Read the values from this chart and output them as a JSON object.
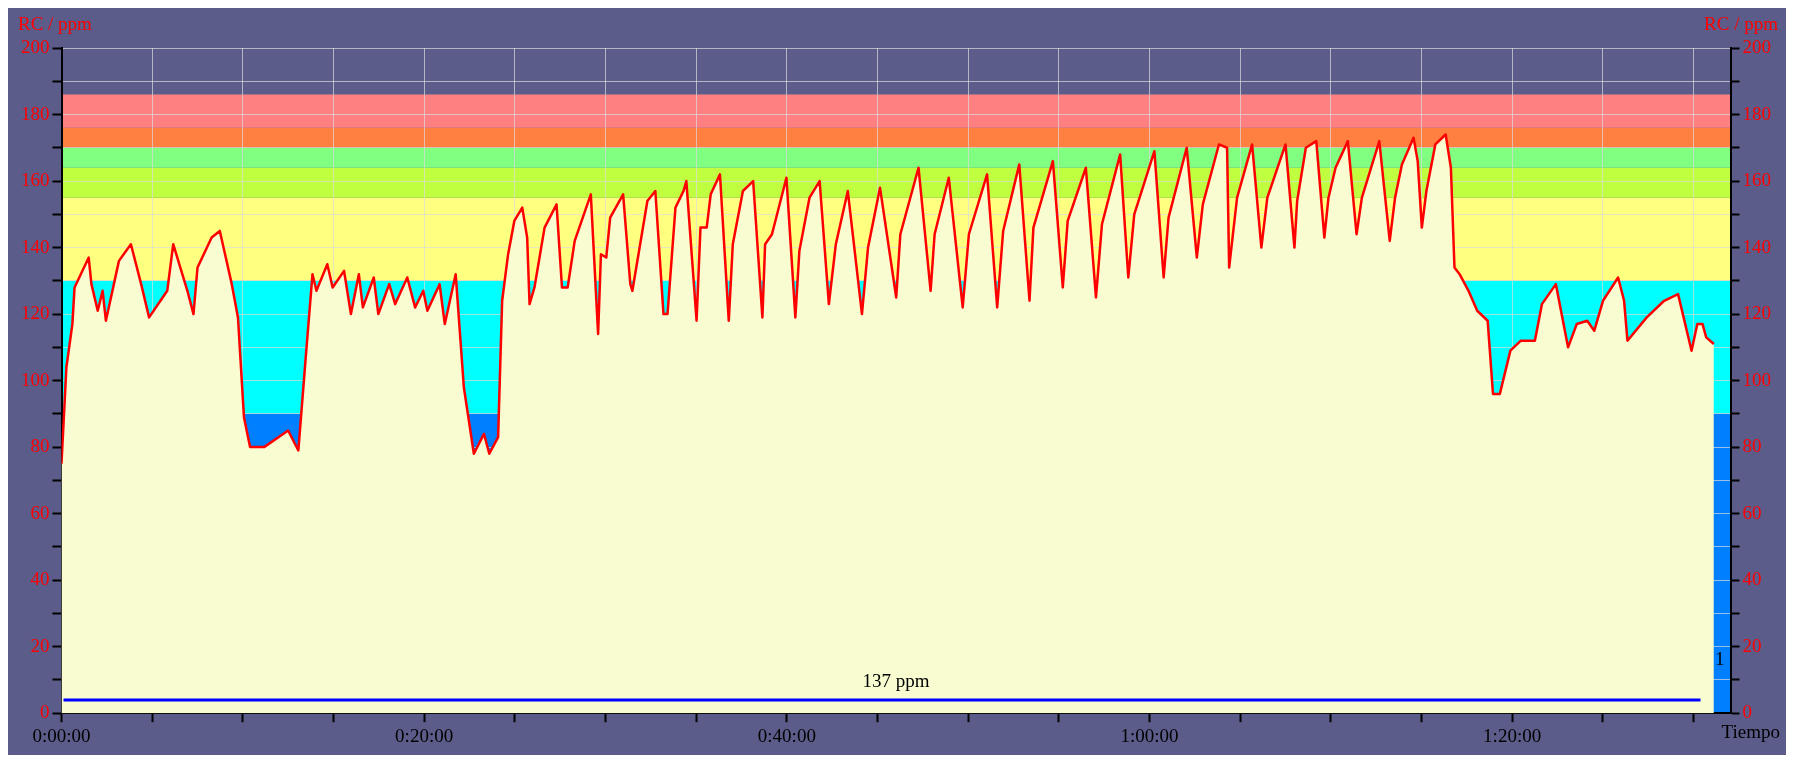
{
  "chart_data": {
    "type": "area",
    "xlabel": "Tiempo",
    "ylabel": "RC / ppm",
    "y2label": "RC / ppm",
    "x": [
      0,
      0.0045,
      0.01,
      0.012,
      0.025,
      0.0275,
      0.0333,
      0.0378,
      0.0408,
      0.0528,
      0.0638,
      0.0732,
      0.0805,
      0.0972,
      0.1027,
      0.1157,
      0.1213,
      0.125,
      0.138,
      0.1455,
      0.1565,
      0.1622,
      0.1677,
      0.1733,
      0.1862,
      0.2083,
      0.2177,
      0.224,
      0.2307,
      0.2343,
      0.2443,
      0.2492,
      0.2597,
      0.266,
      0.2733,
      0.277,
      0.287,
      0.2912,
      0.3012,
      0.3067,
      0.3178,
      0.325,
      0.3325,
      0.3363,
      0.3475,
      0.3523,
      0.3623,
      0.3698,
      0.379,
      0.3883,
      0.3932,
      0.4013,
      0.405,
      0.4105,
      0.4162,
      0.4235,
      0.428,
      0.4302,
      0.4347,
      0.444,
      0.455,
      0.46,
      0.4652,
      0.4717,
      0.4865,
      0.4932,
      0.4958,
      0.5007,
      0.5043,
      0.5162,
      0.5228,
      0.5247,
      0.5385,
      0.5458,
      0.5533,
      0.557,
      0.5643,
      0.5717,
      0.5743,
      0.5837,
      0.5873,
      0.593,
      0.5967,
      0.6052,
      0.6133,
      0.617,
      0.6263,
      0.6357,
      0.6442,
      0.6467,
      0.653,
      0.6663,
      0.6745,
      0.6782,
      0.6875,
      0.6968,
      0.7053,
      0.7117,
      0.7227,
      0.7357,
      0.7413,
      0.7523,
      0.7672,
      0.771,
      0.7877,
      0.7988,
      0.8025,
      0.8155,
      0.8283,
      0.834,
      0.8507,
      0.86,
      0.8655,
      0.8803,
      0.8897,
      0.8933,
      0.9112,
      0.9203,
      0.9248,
      0.9415,
      0.9508,
      0.9563,
      0.973,
      0.9805,
      0.986,
      1.0045,
      1.013,
      1.0175,
      1.0342,
      1.0435,
      1.049,
      1.0638,
      1.0713,
      1.0732,
      1.0805,
      1.0943,
      1.1028,
      1.1083,
      1.125,
      1.1332,
      1.1357,
      1.1437,
      1.1533,
      1.1607,
      1.1645,
      1.171,
      1.1823,
      1.1903,
      1.1952,
      1.2112,
      1.2208,
      1.2257,
      1.232,
      1.2427,
      1.2465,
      1.2503,
      1.2545,
      1.2627,
      1.2722,
      1.277,
      1.2803,
      1.285,
      1.2932,
      1.3012,
      1.3108,
      1.3157,
      1.322,
      1.3317,
      1.3413,
      1.3542,
      1.3607,
      1.3735,
      1.3847,
      1.3927,
      1.4023,
      1.4088,
      1.4168,
      1.4307,
      1.4362,
      1.4393,
      1.457,
      1.473,
      1.4858,
      1.4982,
      1.5035,
      1.5083,
      1.5117,
      1.5187
    ],
    "series": [
      {
        "color": "#ff0000",
        "values": [
          75,
          104,
          117,
          128,
          137,
          129,
          121,
          127,
          118,
          136,
          141,
          129,
          119,
          127,
          141,
          127,
          120,
          134,
          143,
          145,
          129,
          119,
          89,
          80,
          80,
          85,
          79,
          105,
          132,
          127,
          135,
          128,
          133,
          120,
          132,
          122,
          131,
          120,
          129,
          123,
          131,
          122,
          127,
          121,
          129,
          117,
          132,
          98,
          78,
          84,
          78,
          83,
          124,
          138,
          148,
          152,
          143,
          123,
          128,
          146,
          153,
          128,
          128,
          142,
          156,
          114,
          138,
          137,
          149,
          156,
          129,
          127,
          154,
          157,
          120,
          120,
          152,
          157,
          160,
          118,
          146,
          146,
          156,
          162,
          118,
          141,
          157,
          160,
          119,
          141,
          144,
          161,
          119,
          139,
          155,
          160,
          123,
          141,
          157,
          120,
          140,
          158,
          125,
          144,
          164,
          127,
          144,
          161,
          122,
          144,
          162,
          122,
          145,
          165,
          124,
          146,
          166,
          128,
          148,
          164,
          125,
          147,
          168,
          131,
          150,
          169,
          131,
          149,
          170,
          137,
          153,
          171,
          170,
          134,
          155,
          171,
          140,
          155,
          171,
          140,
          154,
          170,
          172,
          143,
          155,
          164,
          172,
          144,
          155,
          172,
          142,
          155,
          165,
          173,
          166,
          146,
          157,
          171,
          174,
          164,
          134,
          132,
          127,
          121,
          118,
          96,
          96,
          109,
          112,
          112,
          123,
          129,
          110,
          117,
          118,
          115,
          124,
          131,
          124,
          112,
          119,
          124,
          126,
          109,
          117,
          117,
          113,
          111
        ]
      }
    ],
    "xlim": [
      0,
      1.534
    ],
    "xticks": [
      {
        "value": 0,
        "label": "0:00:00"
      },
      {
        "value": 0.0833,
        "label": null
      },
      {
        "value": 0.1667,
        "label": null
      },
      {
        "value": 0.25,
        "label": null
      },
      {
        "value": 0.3333,
        "label": "0:20:00"
      },
      {
        "value": 0.4167,
        "label": null
      },
      {
        "value": 0.5,
        "label": null
      },
      {
        "value": 0.5833,
        "label": null
      },
      {
        "value": 0.6667,
        "label": "0:40:00"
      },
      {
        "value": 0.75,
        "label": null
      },
      {
        "value": 0.8333,
        "label": null
      },
      {
        "value": 0.9167,
        "label": null
      },
      {
        "value": 1,
        "label": "1:00:00"
      },
      {
        "value": 1.0833,
        "label": null
      },
      {
        "value": 1.1667,
        "label": null
      },
      {
        "value": 1.25,
        "label": null
      },
      {
        "value": 1.3333,
        "label": "1:20:00"
      },
      {
        "value": 1.4167,
        "label": null
      },
      {
        "value": 1.5,
        "label": null
      }
    ],
    "ylim": [
      0,
      200
    ],
    "yticks": [
      0,
      {
        "value": 10,
        "label": null
      },
      20,
      {
        "value": 30,
        "label": null
      },
      40,
      {
        "value": 50,
        "label": null
      },
      60,
      {
        "value": 70,
        "label": null
      },
      80,
      {
        "value": 90,
        "label": null
      },
      100,
      {
        "value": 110,
        "label": null
      },
      120,
      {
        "value": 130,
        "label": null
      },
      140,
      {
        "value": 150,
        "label": null
      },
      160,
      {
        "value": 170,
        "label": null
      },
      180,
      {
        "value": 190,
        "label": null
      },
      200
    ],
    "y2lim": [
      0,
      200
    ],
    "y2ticks": [
      0,
      {
        "value": 10,
        "label": null
      },
      20,
      {
        "value": 30,
        "label": null
      },
      40,
      {
        "value": 50,
        "label": null
      },
      60,
      {
        "value": 70,
        "label": null
      },
      80,
      {
        "value": 90,
        "label": null
      },
      100,
      {
        "value": 110,
        "label": null
      },
      120,
      {
        "value": 130,
        "label": null
      },
      140,
      {
        "value": 150,
        "label": null
      },
      160,
      {
        "value": 170,
        "label": null
      },
      180,
      {
        "value": 190,
        "label": null
      },
      200
    ],
    "bands": [
      {
        "axis": "y",
        "from": 0,
        "to": 90,
        "color": "#0080ff"
      },
      {
        "axis": "y",
        "from": 90,
        "to": 130,
        "color": "#00ffff"
      },
      {
        "axis": "y",
        "from": 130,
        "to": 155,
        "color": "#ffff80"
      },
      {
        "axis": "y",
        "from": 155,
        "to": 164,
        "color": "#c0ff40"
      },
      {
        "axis": "y",
        "from": 164,
        "to": 170,
        "color": "#80ff80"
      },
      {
        "axis": "y",
        "from": 170,
        "to": 176,
        "color": "#ff8040"
      },
      {
        "axis": "y",
        "from": 176,
        "to": 186,
        "color": "#ff8080"
      }
    ],
    "ref_lines": [
      {
        "axis": "y",
        "value": 4,
        "label": "137 ppm",
        "color": "#0000ff"
      }
    ],
    "annotations": [
      "1"
    ],
    "grid": true,
    "marker": "none"
  }
}
